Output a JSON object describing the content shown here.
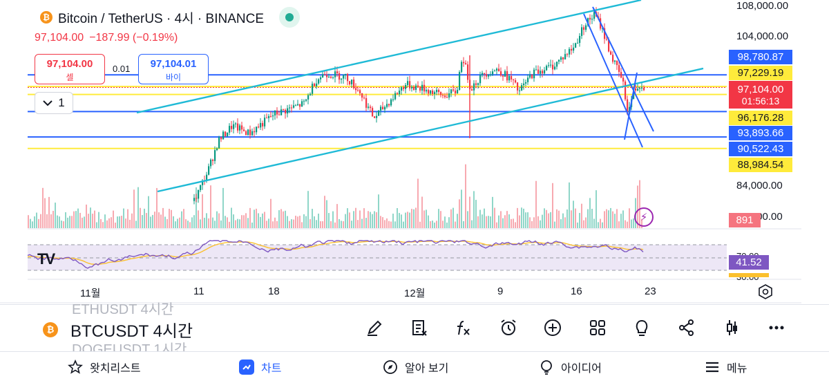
{
  "header": {
    "title": "Bitcoin / TetherUS · 4시 · BINANCE",
    "coin_glyph": "₿",
    "last_price": "97,104.00",
    "change": "−187.99 (−0.19%)"
  },
  "trade": {
    "sell_price": "97,104.00",
    "sell_label": "셀",
    "spread": "0.01",
    "buy_price": "97,104.01",
    "buy_label": "바이"
  },
  "interval_button": {
    "label": "1"
  },
  "price_axis": {
    "labels": [
      "108,000.00",
      "104,000.00",
      "84,000.00",
      "80,000.00"
    ]
  },
  "price_tags": {
    "blue_top": "98,780.87",
    "yellow_top": "97,229.19",
    "current": "97,104.00",
    "countdown": "01:56:13",
    "yellow_mid": "96,176.28",
    "blue_mid": "93,893.66",
    "blue_low": "90,522.43",
    "yellow_low": "88,984.54",
    "volume": "891",
    "rsi_value": "41.52",
    "rsi_upper": "70.00",
    "rsi_lower": "30.00"
  },
  "time_axis": [
    "11월",
    "11",
    "18",
    "12월",
    "9",
    "16",
    "23"
  ],
  "colors": {
    "up": "#089981",
    "down": "#f23645",
    "channel": "#1fbad6",
    "blue_level": "#2962ff",
    "yellow_level": "#ffeb3b",
    "rsi_line": "#7e57c2",
    "rsi_ma": "#fbc02d"
  },
  "chart_data": {
    "type": "candlestick",
    "symbol": "BTCUSDT",
    "interval": "4H",
    "y_axis_range": [
      80000,
      109000
    ],
    "horizontal_levels": [
      {
        "value": 98780.87,
        "color": "blue"
      },
      {
        "value": 97229.19,
        "color": "yellow"
      },
      {
        "value": 96176.28,
        "color": "yellow"
      },
      {
        "value": 93893.66,
        "color": "blue"
      },
      {
        "value": 90522.43,
        "color": "blue"
      },
      {
        "value": 88984.54,
        "color": "yellow"
      }
    ],
    "last_price": 97104.0,
    "volume_last": 891,
    "rsi_last": 41.52
  },
  "toolbar": {
    "ghost_prev": "ETHUSDT 4시간",
    "symbol": "BTCUSDT",
    "interval": "4시간",
    "ghost_next": "DOGEUSDT 1시간",
    "tools": [
      "pencil-icon",
      "indicators-icon",
      "fx-icon",
      "alarm-icon",
      "plus-icon",
      "grid-icon",
      "idea-icon",
      "share-icon",
      "candle-icon",
      "more-icon"
    ]
  },
  "nav": {
    "watchlist": "왓치리스트",
    "chart": "차트",
    "explore": "알아 보기",
    "ideas": "아이디어",
    "menu": "메뉴"
  }
}
